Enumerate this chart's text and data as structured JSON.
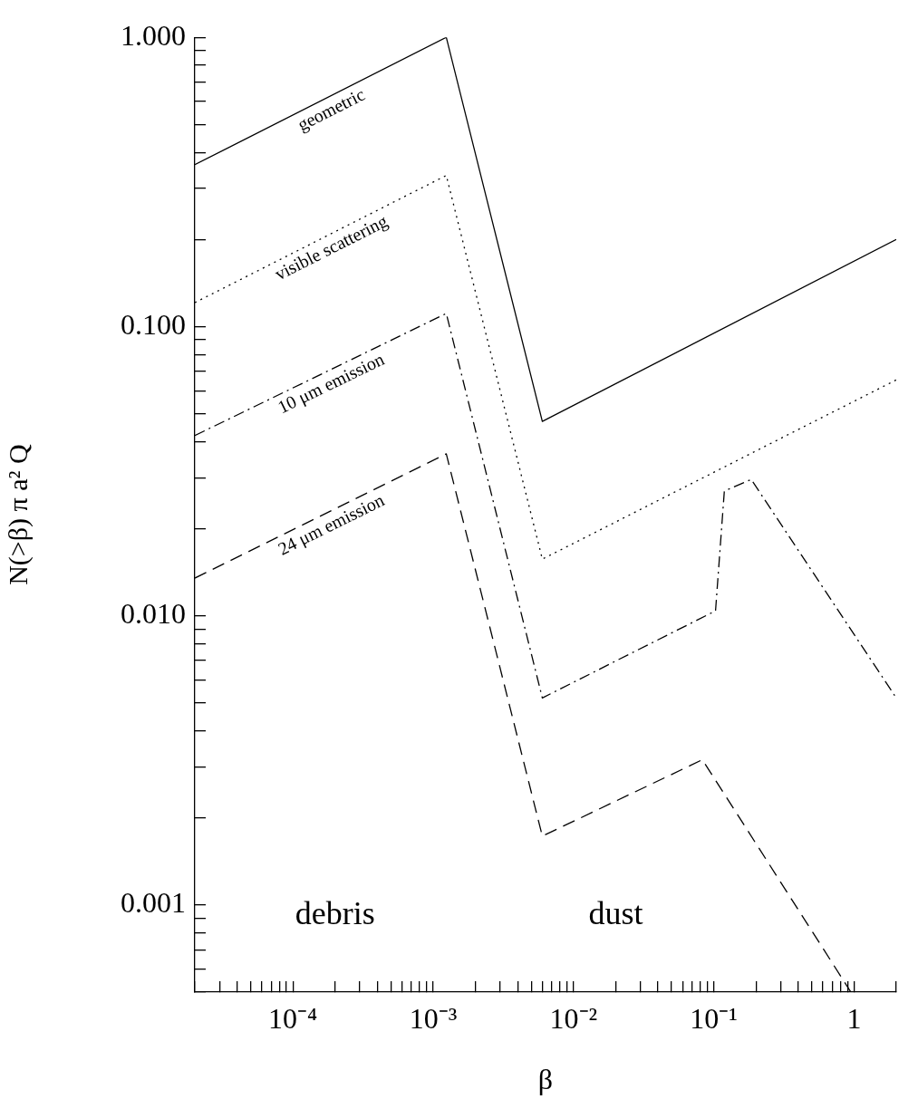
{
  "chart_data": {
    "type": "line",
    "xlabel": "β",
    "ylabel": "N(>β) π a² Q",
    "log": "xy",
    "xlim": [
      2e-05,
      2
    ],
    "ylim": [
      0.0005,
      1
    ],
    "xticks": [
      {
        "value": 2e-05,
        "label": null
      },
      {
        "value": 3e-05,
        "label": null
      },
      {
        "value": 4e-05,
        "label": null
      },
      {
        "value": 5e-05,
        "label": null
      },
      {
        "value": 6e-05,
        "label": null
      },
      {
        "value": 7e-05,
        "label": null
      },
      {
        "value": 8e-05,
        "label": null
      },
      {
        "value": 9e-05,
        "label": null
      },
      {
        "value": 0.0001,
        "label": "10⁻⁴"
      },
      {
        "value": 0.0002,
        "label": null
      },
      {
        "value": 0.0003,
        "label": null
      },
      {
        "value": 0.0004,
        "label": null
      },
      {
        "value": 0.0005,
        "label": null
      },
      {
        "value": 0.0006,
        "label": null
      },
      {
        "value": 0.0007,
        "label": null
      },
      {
        "value": 0.0008,
        "label": null
      },
      {
        "value": 0.0009,
        "label": null
      },
      {
        "value": 0.001,
        "label": "10⁻³"
      },
      {
        "value": 0.002,
        "label": null
      },
      {
        "value": 0.003,
        "label": null
      },
      {
        "value": 0.004,
        "label": null
      },
      {
        "value": 0.005,
        "label": null
      },
      {
        "value": 0.006,
        "label": null
      },
      {
        "value": 0.007,
        "label": null
      },
      {
        "value": 0.008,
        "label": null
      },
      {
        "value": 0.009,
        "label": null
      },
      {
        "value": 0.01,
        "label": "10⁻²"
      },
      {
        "value": 0.02,
        "label": null
      },
      {
        "value": 0.03,
        "label": null
      },
      {
        "value": 0.04,
        "label": null
      },
      {
        "value": 0.05,
        "label": null
      },
      {
        "value": 0.06,
        "label": null
      },
      {
        "value": 0.07,
        "label": null
      },
      {
        "value": 0.08,
        "label": null
      },
      {
        "value": 0.09,
        "label": null
      },
      {
        "value": 0.1,
        "label": "10⁻¹"
      },
      {
        "value": 0.2,
        "label": null
      },
      {
        "value": 0.3,
        "label": null
      },
      {
        "value": 0.4,
        "label": null
      },
      {
        "value": 0.5,
        "label": null
      },
      {
        "value": 0.6,
        "label": null
      },
      {
        "value": 0.7,
        "label": null
      },
      {
        "value": 0.8,
        "label": null
      },
      {
        "value": 0.9,
        "label": null
      },
      1,
      {
        "value": 2,
        "label": null
      }
    ],
    "yticks": [
      {
        "value": 0.0005,
        "label": null
      },
      {
        "value": 0.0006,
        "label": null
      },
      {
        "value": 0.0007,
        "label": null
      },
      {
        "value": 0.0008,
        "label": null
      },
      {
        "value": 0.0009,
        "label": null
      },
      {
        "value": 0.001,
        "label": "0.001"
      },
      {
        "value": 0.002,
        "label": null
      },
      {
        "value": 0.003,
        "label": null
      },
      {
        "value": 0.004,
        "label": null
      },
      {
        "value": 0.005,
        "label": null
      },
      {
        "value": 0.006,
        "label": null
      },
      {
        "value": 0.007,
        "label": null
      },
      {
        "value": 0.008,
        "label": null
      },
      {
        "value": 0.009,
        "label": null
      },
      {
        "value": 0.01,
        "label": "0.010"
      },
      {
        "value": 0.02,
        "label": null
      },
      {
        "value": 0.03,
        "label": null
      },
      {
        "value": 0.04,
        "label": null
      },
      {
        "value": 0.05,
        "label": null
      },
      {
        "value": 0.06,
        "label": null
      },
      {
        "value": 0.07,
        "label": null
      },
      {
        "value": 0.08,
        "label": null
      },
      {
        "value": 0.09,
        "label": null
      },
      {
        "value": 0.1,
        "label": "0.100"
      },
      {
        "value": 0.2,
        "label": null
      },
      {
        "value": 0.3,
        "label": null
      },
      {
        "value": 0.4,
        "label": null
      },
      {
        "value": 0.5,
        "label": null
      },
      {
        "value": 0.6,
        "label": null
      },
      {
        "value": 0.7,
        "label": null
      },
      {
        "value": 0.8,
        "label": null
      },
      {
        "value": 0.9,
        "label": null
      },
      {
        "value": 1,
        "label": "1.000"
      }
    ],
    "legend": false,
    "marker": "none",
    "series": [
      {
        "name": "geometric",
        "color": "#000000",
        "line_style": "solid",
        "x": [
          2e-05,
          0.00124,
          0.006,
          2
        ],
        "values": [
          0.363,
          1.0,
          0.047,
          0.2
        ]
      },
      {
        "name": "visible scattering",
        "color": "#000000",
        "line_style": "dotted",
        "x": [
          2e-05,
          0.00124,
          0.006,
          2
        ],
        "values": [
          0.121,
          0.333,
          0.0157,
          0.0654
        ]
      },
      {
        "name": "10 μm emission",
        "color": "#000000",
        "line_style": "dashdot",
        "x": [
          2e-05,
          0.00124,
          0.006,
          0.103,
          0.119,
          0.185,
          2
        ],
        "values": [
          0.042,
          0.111,
          0.0052,
          0.0104,
          0.027,
          0.0296,
          0.0052
        ]
      },
      {
        "name": "24 μm emission",
        "color": "#000000",
        "line_style": "dashed",
        "x": [
          2e-05,
          0.00124,
          0.006,
          0.083,
          0.95
        ],
        "values": [
          0.0135,
          0.0363,
          0.00173,
          0.00318,
          0.0005
        ]
      }
    ],
    "annotations": [
      "debris",
      "dust"
    ]
  }
}
